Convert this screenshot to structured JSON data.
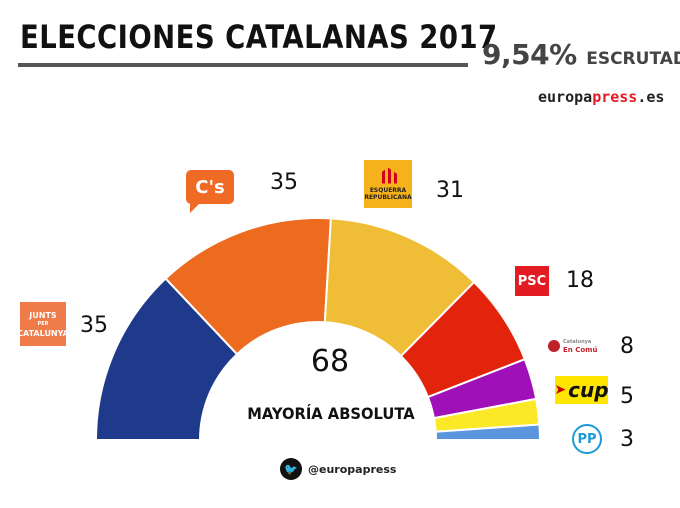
{
  "header": {
    "title": "ELECCIONES CATALANAS 2017",
    "scrutiny_pct": "9,54%",
    "scrutiny_label": "ESCRUTADO",
    "brand_pre": "europa",
    "brand_mid": "press",
    "brand_post": ".es"
  },
  "center": {
    "majority_number": "68",
    "majority_label": "MAYORÍA ABSOLUTA"
  },
  "footer": {
    "twitter_handle": "@europapress",
    "twitter_icon": "twitter-bird-icon"
  },
  "logos": {
    "cs": "C's",
    "erc_line1": "ESQUERRA",
    "erc_line2": "REPUBLICANA",
    "psc": "PSC",
    "jxc_line1": "JUNTS",
    "jxc_small": "PER",
    "jxc_line2": "CATALUNYA",
    "comu_line1": "Catalunya",
    "comu_line2": "En Comú",
    "cup": "cup",
    "pp": "PP"
  },
  "chart_data": {
    "type": "pie",
    "subtype": "hemicycle",
    "total_seats": 135,
    "majority": 68,
    "series": [
      {
        "party": "Junts per Catalunya",
        "seats": 35,
        "color": "#1f3a8a"
      },
      {
        "party": "Ciudadanos",
        "seats": 35,
        "color": "#ed6b1f"
      },
      {
        "party": "Esquerra Republicana",
        "seats": 31,
        "color": "#efbd36"
      },
      {
        "party": "PSC",
        "seats": 18,
        "color": "#e2240c"
      },
      {
        "party": "Catalunya En Comú",
        "seats": 8,
        "color": "#a010b8"
      },
      {
        "party": "CUP",
        "seats": 5,
        "color": "#fbe927"
      },
      {
        "party": "PP",
        "seats": 3,
        "color": "#5b95de"
      }
    ],
    "labels": {
      "jxc": "35",
      "cs": "35",
      "erc": "31",
      "psc": "18",
      "comu": "8",
      "cup": "5",
      "pp": "3"
    }
  }
}
